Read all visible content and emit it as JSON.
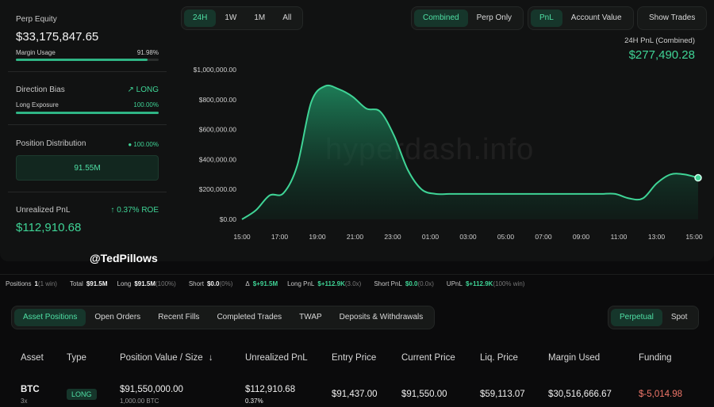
{
  "summary": {
    "perp_equity_label": "Perp Equity",
    "perp_equity_value": "$33,175,847.65",
    "margin_usage_label": "Margin Usage",
    "margin_usage_value": "91.98%",
    "margin_usage_fraction": 0.9198,
    "direction_bias_label": "Direction Bias",
    "direction_bias_value": "LONG",
    "long_exposure_label": "Long Exposure",
    "long_exposure_value": "100.00%",
    "long_exposure_fraction": 1.0,
    "position_distribution_label": "Position Distribution",
    "position_distribution_value": "100.00%",
    "position_distribution_amount": "91.55M",
    "unrealized_pnl_label": "Unrealized PnL",
    "unrealized_roe": "0.37% ROE",
    "unrealized_pnl_value": "$112,910.68"
  },
  "timeframes": [
    "24H",
    "1W",
    "1M",
    "All"
  ],
  "timeframe_selected": "24H",
  "mode_tabs": [
    "Combined",
    "Perp Only"
  ],
  "mode_selected": "Combined",
  "metric_tabs": [
    "PnL",
    "Account Value"
  ],
  "metric_selected": "PnL",
  "show_trades_label": "Show Trades",
  "pnl_header": {
    "label": "24H PnL (Combined)",
    "value": "$277,490.28"
  },
  "watermark": "hyperdash.info",
  "handle": "@TedPillows",
  "chart_data": {
    "type": "area",
    "x": [
      "15:00",
      "16:00",
      "17:00",
      "17:30",
      "18:00",
      "18:30",
      "19:00",
      "19:30",
      "20:00",
      "20:30",
      "21:00",
      "21:30",
      "22:00",
      "22:30",
      "23:00",
      "23:30",
      "00:00",
      "01:00",
      "02:00",
      "03:00",
      "04:00",
      "05:00",
      "06:00",
      "07:00",
      "08:00",
      "09:00",
      "10:00",
      "11:00",
      "12:00",
      "13:00",
      "14:00",
      "14:30",
      "15:00",
      "15:30"
    ],
    "values": [
      0,
      60000,
      160000,
      175000,
      360000,
      780000,
      890000,
      870000,
      820000,
      740000,
      720000,
      560000,
      330000,
      200000,
      170000,
      170000,
      170000,
      170000,
      170000,
      170000,
      170000,
      170000,
      170000,
      170000,
      170000,
      170000,
      170000,
      170000,
      140000,
      140000,
      240000,
      300000,
      300000,
      277490
    ],
    "y_ticks": [
      "$1,000,000.00",
      "$800,000.00",
      "$600,000.00",
      "$400,000.00",
      "$200,000.00",
      "$0.00"
    ],
    "y_tick_values": [
      1000000,
      800000,
      600000,
      400000,
      200000,
      0
    ],
    "x_ticks": [
      "15:00",
      "17:00",
      "19:00",
      "21:00",
      "23:00",
      "01:00",
      "03:00",
      "05:00",
      "07:00",
      "09:00",
      "11:00",
      "13:00",
      "15:00"
    ],
    "ylim": [
      0,
      1000000
    ],
    "color": "#3fd496",
    "grid": false
  },
  "stats_bar": [
    {
      "label": "Positions",
      "value": "1",
      "note": "(1 win)"
    },
    {
      "label": "Total",
      "value": "$91.5M",
      "note": ""
    },
    {
      "label": "Long",
      "value": "$91.5M",
      "note": "(100%)"
    },
    {
      "label": "Short",
      "value": "$0.0",
      "note": "(0%)"
    },
    {
      "label": "Δ",
      "value": "$+91.5M",
      "note": ""
    },
    {
      "label": "Long PnL",
      "value": "$+112.9K",
      "note": "(3.0x)"
    },
    {
      "label": "Short PnL",
      "value": "$0.0",
      "note": "(0.0x)"
    },
    {
      "label": "UPnL",
      "value": "$+112.9K",
      "note": "(100% win)"
    }
  ],
  "position_tabs": [
    "Asset Positions",
    "Open Orders",
    "Recent Fills",
    "Completed Trades",
    "TWAP",
    "Deposits & Withdrawals"
  ],
  "position_tab_selected": "Asset Positions",
  "market_tabs": [
    "Perpetual",
    "Spot"
  ],
  "market_selected": "Perpetual",
  "table": {
    "headers": [
      "Asset",
      "Type",
      "Position Value / Size",
      "Unrealized PnL",
      "Entry Price",
      "Current Price",
      "Liq. Price",
      "Margin Used",
      "Funding"
    ],
    "sort_arrow": "↓",
    "rows": [
      {
        "asset": "BTC",
        "leverage": "3x",
        "type": "LONG",
        "position_value": "$91,550,000.00",
        "size": "1,000.00 BTC",
        "unrealized_pnl": "$112,910.68",
        "unrealized_pct": "0.37%",
        "entry_price": "$91,437.00",
        "current_price": "$91,550.00",
        "liq_price": "$59,113.07",
        "margin_used": "$30,516,666.67",
        "funding": "$-5,014.98"
      }
    ]
  },
  "colors": {
    "accent": "#3fd496",
    "negative": "#f0776a",
    "background": "#0b0b0c",
    "panel": "#111212"
  }
}
